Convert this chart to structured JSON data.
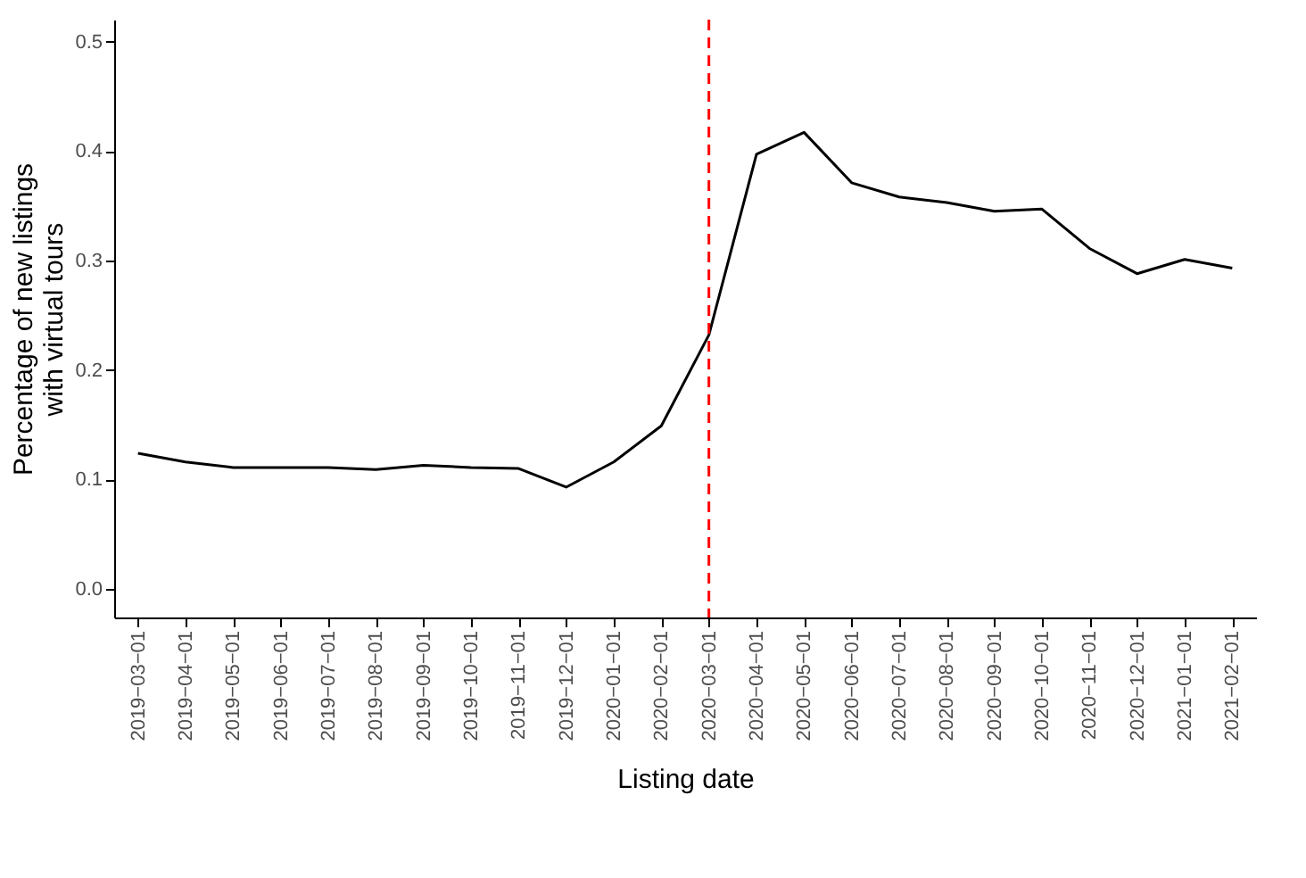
{
  "chart_data": {
    "type": "line",
    "xlabel": "Listing date",
    "ylabel": "Percentage of new listings\nwith virtual tours",
    "categories": [
      "2019−03−01",
      "2019−04−01",
      "2019−05−01",
      "2019−06−01",
      "2019−07−01",
      "2019−08−01",
      "2019−09−01",
      "2019−10−01",
      "2019−11−01",
      "2019−12−01",
      "2020−01−01",
      "2020−02−01",
      "2020−03−01",
      "2020−04−01",
      "2020−05−01",
      "2020−06−01",
      "2020−07−01",
      "2020−08−01",
      "2020−09−01",
      "2020−10−01",
      "2020−11−01",
      "2020−12−01",
      "2021−01−01",
      "2021−02−01"
    ],
    "series": [
      {
        "color": "#000000",
        "values": [
          0.124,
          0.116,
          0.111,
          0.111,
          0.111,
          0.109,
          0.113,
          0.111,
          0.11,
          0.093,
          0.116,
          0.149,
          0.232,
          0.397,
          0.417,
          0.371,
          0.358,
          0.353,
          0.345,
          0.347,
          0.311,
          0.288,
          0.301,
          0.293
        ]
      }
    ],
    "ylim": [
      -0.026,
      0.52
    ],
    "yticks": [
      {
        "value": 0,
        "label": "0.0"
      },
      0.1,
      0.2,
      0.3,
      0.4,
      0.5
    ],
    "ref_lines": [
      {
        "axis": "x",
        "value": "2020−03−01",
        "color": "#ff0000",
        "line_style": "dashed"
      }
    ],
    "grid": false,
    "marker": "none",
    "line_style": "solid"
  }
}
